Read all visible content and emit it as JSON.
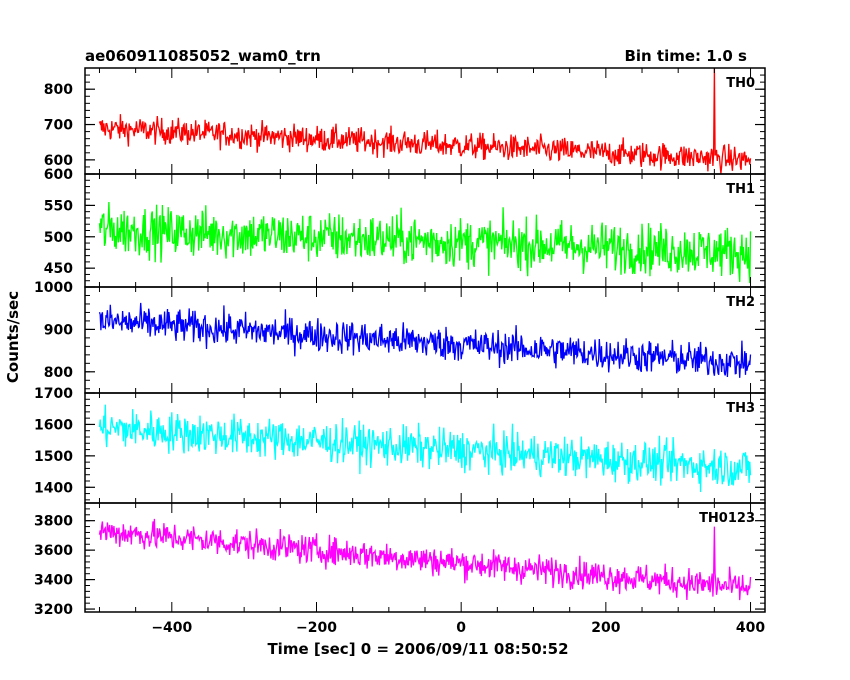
{
  "header": {
    "left_title": "ae060911085052_wam0_trn",
    "right_title": "Bin time: 1.0 s"
  },
  "chart_data": [
    {
      "type": "line",
      "series": [
        {
          "name": "TH0",
          "color": "#ff0000",
          "summary": {
            "start_mean": 690,
            "end_mean": 600,
            "noise": 26,
            "spike_x": 350,
            "spike_y": 860
          }
        }
      ],
      "x": {
        "min": -500,
        "max": 400,
        "step_sec": 1.0
      },
      "ylim": [
        560,
        860
      ],
      "yticks": [
        600,
        700,
        800
      ],
      "ytick_labels": [
        "600",
        "700",
        "800"
      ],
      "panel_label": "TH0"
    },
    {
      "type": "line",
      "series": [
        {
          "name": "TH1",
          "color": "#00ff00",
          "summary": {
            "start_mean": 512,
            "end_mean": 475,
            "noise": 28
          }
        }
      ],
      "x": {
        "min": -500,
        "max": 400,
        "step_sec": 1.0
      },
      "ylim": [
        420,
        600
      ],
      "yticks": [
        450,
        500,
        550,
        600
      ],
      "ytick_labels": [
        "450",
        "500",
        "550",
        "600"
      ],
      "panel_label": "TH1"
    },
    {
      "type": "line",
      "series": [
        {
          "name": "TH2",
          "color": "#0000ff",
          "summary": {
            "start_mean": 920,
            "end_mean": 820,
            "noise": 28
          }
        }
      ],
      "x": {
        "min": -500,
        "max": 400,
        "step_sec": 1.0
      },
      "ylim": [
        750,
        1000
      ],
      "yticks": [
        800,
        900,
        1000
      ],
      "ytick_labels": [
        "800",
        "900",
        "1000"
      ],
      "panel_label": "TH2"
    },
    {
      "type": "line",
      "series": [
        {
          "name": "TH3",
          "color": "#00ffff",
          "summary": {
            "start_mean": 1590,
            "end_mean": 1460,
            "noise": 45
          }
        }
      ],
      "x": {
        "min": -500,
        "max": 400,
        "step_sec": 1.0
      },
      "ylim": [
        1350,
        1700
      ],
      "yticks": [
        1400,
        1500,
        1600,
        1700
      ],
      "ytick_labels": [
        "1400",
        "1500",
        "1600",
        "1700"
      ],
      "panel_label": "TH3"
    },
    {
      "type": "line",
      "series": [
        {
          "name": "TH0123",
          "color": "#ff00ff",
          "summary": {
            "start_mean": 3730,
            "end_mean": 3340,
            "noise": 70,
            "spike_x": 350,
            "spike_y": 3760
          }
        }
      ],
      "x": {
        "min": -500,
        "max": 400,
        "step_sec": 1.0
      },
      "ylim": [
        3180,
        3920
      ],
      "yticks": [
        3200,
        3400,
        3600,
        3800
      ],
      "ytick_labels": [
        "3200",
        "3400",
        "3600",
        "3800"
      ],
      "panel_label": "TH0123"
    }
  ],
  "x_axis": {
    "xlim": [
      -520,
      420
    ],
    "ticks": [
      -400,
      -200,
      0,
      200,
      400
    ],
    "tick_labels": [
      "−400",
      "−200",
      "0",
      "200",
      "400"
    ],
    "xlabel": "Time [sec] 0 = 2006/09/11 08:50:52"
  },
  "y_axis": {
    "ylabel": "Counts/sec"
  }
}
